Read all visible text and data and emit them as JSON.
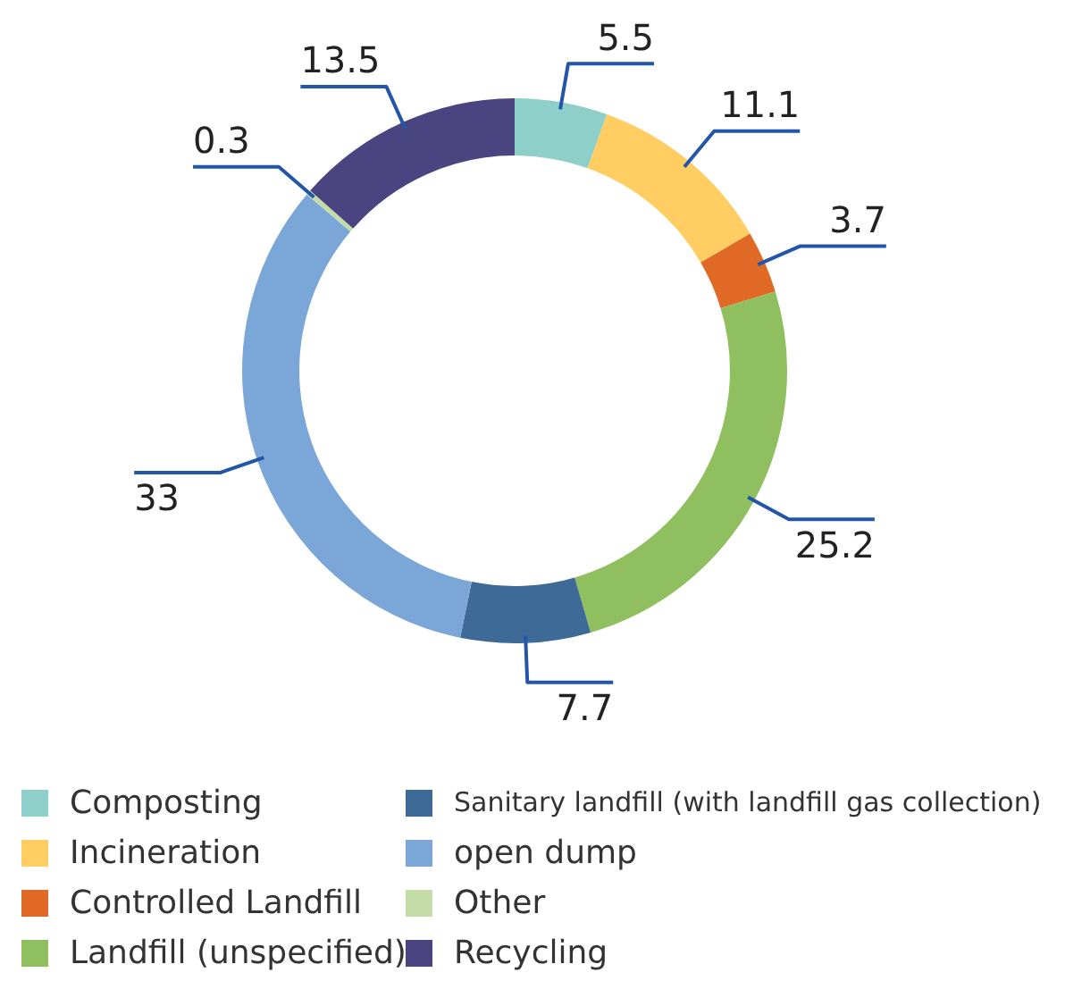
{
  "chart_data": {
    "type": "donut",
    "categories": [
      "Composting",
      "Incineration",
      "Controlled Landfill",
      "Landfill (unspecified)",
      "Sanitary landfill (with landfill gas collection)",
      "open dump",
      "Other",
      "Recycling"
    ],
    "values": [
      5.5,
      11.1,
      3.7,
      25.2,
      7.7,
      33,
      0.3,
      13.5
    ],
    "colors": [
      "#8ecfc9",
      "#ffcd61",
      "#e06a25",
      "#8fbf5f",
      "#3d6a96",
      "#7aa6d8",
      "#c4dca8",
      "#4a4580"
    ],
    "data_labels": true,
    "legend": "bottom"
  }
}
